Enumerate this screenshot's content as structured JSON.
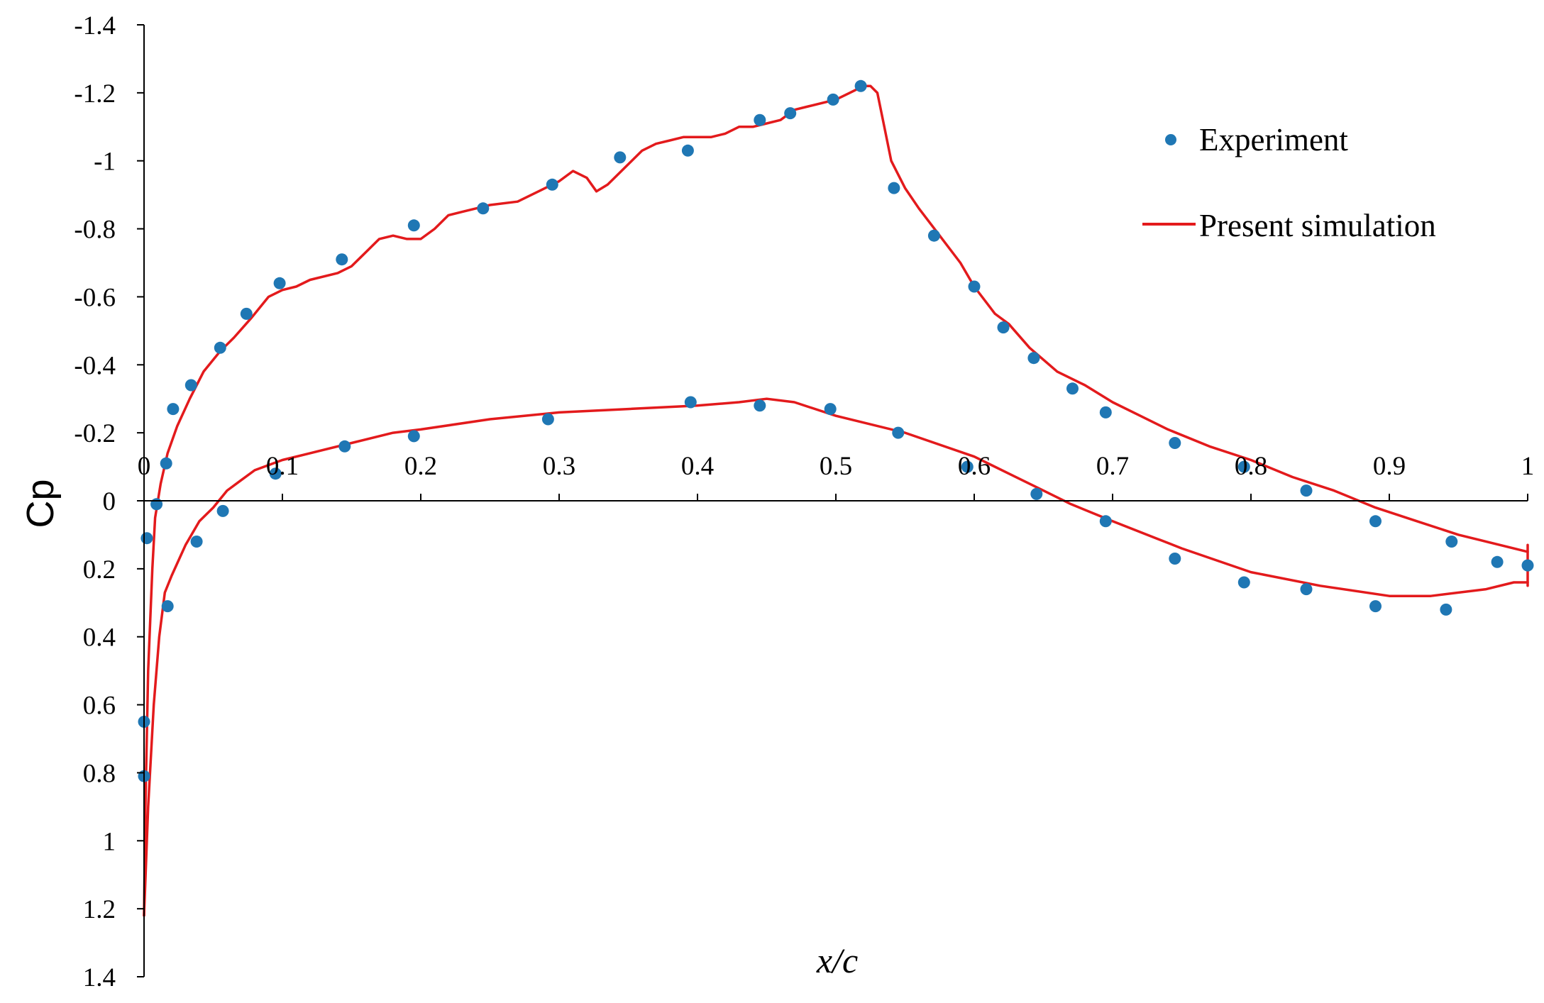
{
  "chart_data": {
    "type": "scatter",
    "title": "",
    "xlabel": "x/c",
    "ylabel": "Cp",
    "xlim": [
      0,
      1
    ],
    "ylim": [
      -1.4,
      1.4
    ],
    "y_inverted": true,
    "grid": false,
    "legend_position": "top-right",
    "x_ticks": [
      0,
      0.1,
      0.2,
      0.3,
      0.4,
      0.5,
      0.6,
      0.7,
      0.8,
      0.9,
      1
    ],
    "x_tick_labels": [
      "0",
      "0.1",
      "0.2",
      "0.3",
      "0.4",
      "0.5",
      "0.6",
      "0.7",
      "0.8",
      "0.9",
      "1"
    ],
    "y_ticks": [
      -1.4,
      -1.2,
      -1,
      -0.8,
      -0.6,
      -0.4,
      -0.2,
      0,
      0.2,
      0.4,
      0.6,
      0.8,
      1,
      1.2,
      1.4
    ],
    "y_tick_labels": [
      "-1.4",
      "-1.2",
      "-1",
      "-0.8",
      "-0.6",
      "-0.4",
      "-0.2",
      "0",
      "0.2",
      "0.4",
      "0.6",
      "0.8",
      "1",
      "1.2",
      "1.4"
    ],
    "series": [
      {
        "name": "Experiment",
        "kind": "scatter",
        "color": "#1f77b4",
        "points": [
          [
            0.0,
            0.81
          ],
          [
            0.0,
            0.65
          ],
          [
            0.002,
            0.11
          ],
          [
            0.009,
            0.01
          ],
          [
            0.016,
            -0.11
          ],
          [
            0.021,
            -0.27
          ],
          [
            0.034,
            -0.34
          ],
          [
            0.055,
            -0.45
          ],
          [
            0.074,
            -0.55
          ],
          [
            0.098,
            -0.64
          ],
          [
            0.143,
            -0.71
          ],
          [
            0.195,
            -0.81
          ],
          [
            0.245,
            -0.86
          ],
          [
            0.295,
            -0.93
          ],
          [
            0.344,
            -1.01
          ],
          [
            0.393,
            -1.03
          ],
          [
            0.445,
            -1.12
          ],
          [
            0.467,
            -1.14
          ],
          [
            0.498,
            -1.18
          ],
          [
            0.518,
            -1.22
          ],
          [
            0.542,
            -0.92
          ],
          [
            0.571,
            -0.78
          ],
          [
            0.6,
            -0.63
          ],
          [
            0.621,
            -0.51
          ],
          [
            0.643,
            -0.42
          ],
          [
            0.671,
            -0.33
          ],
          [
            0.695,
            -0.26
          ],
          [
            0.745,
            -0.17
          ],
          [
            0.795,
            -0.1
          ],
          [
            0.84,
            -0.03
          ],
          [
            0.89,
            0.06
          ],
          [
            0.945,
            0.12
          ],
          [
            0.978,
            0.18
          ],
          [
            1.0,
            0.19
          ],
          [
            0.017,
            0.31
          ],
          [
            0.038,
            0.12
          ],
          [
            0.057,
            0.03
          ],
          [
            0.095,
            -0.08
          ],
          [
            0.145,
            -0.16
          ],
          [
            0.195,
            -0.19
          ],
          [
            0.292,
            -0.24
          ],
          [
            0.395,
            -0.29
          ],
          [
            0.445,
            -0.28
          ],
          [
            0.496,
            -0.27
          ],
          [
            0.545,
            -0.2
          ],
          [
            0.595,
            -0.1
          ],
          [
            0.645,
            -0.02
          ],
          [
            0.695,
            0.06
          ],
          [
            0.745,
            0.17
          ],
          [
            0.795,
            0.24
          ],
          [
            0.84,
            0.26
          ],
          [
            0.89,
            0.31
          ],
          [
            0.941,
            0.32
          ]
        ]
      },
      {
        "name": "Present simulation",
        "kind": "line",
        "color": "#e31a1c",
        "curves": [
          [
            [
              0.0,
              1.22
            ],
            [
              0.001,
              0.9
            ],
            [
              0.003,
              0.5
            ],
            [
              0.006,
              0.2
            ],
            [
              0.008,
              0.05
            ],
            [
              0.012,
              -0.05
            ],
            [
              0.017,
              -0.14
            ],
            [
              0.024,
              -0.22
            ],
            [
              0.033,
              -0.3
            ],
            [
              0.043,
              -0.38
            ],
            [
              0.055,
              -0.44
            ],
            [
              0.065,
              -0.48
            ],
            [
              0.078,
              -0.54
            ],
            [
              0.09,
              -0.6
            ],
            [
              0.1,
              -0.62
            ],
            [
              0.11,
              -0.63
            ],
            [
              0.12,
              -0.65
            ],
            [
              0.14,
              -0.67
            ],
            [
              0.15,
              -0.69
            ],
            [
              0.16,
              -0.73
            ],
            [
              0.17,
              -0.77
            ],
            [
              0.18,
              -0.78
            ],
            [
              0.19,
              -0.77
            ],
            [
              0.2,
              -0.77
            ],
            [
              0.21,
              -0.8
            ],
            [
              0.22,
              -0.84
            ],
            [
              0.23,
              -0.85
            ],
            [
              0.24,
              -0.86
            ],
            [
              0.25,
              -0.87
            ],
            [
              0.27,
              -0.88
            ],
            [
              0.29,
              -0.92
            ],
            [
              0.3,
              -0.94
            ],
            [
              0.31,
              -0.97
            ],
            [
              0.32,
              -0.95
            ],
            [
              0.327,
              -0.91
            ],
            [
              0.335,
              -0.93
            ],
            [
              0.35,
              -0.99
            ],
            [
              0.36,
              -1.03
            ],
            [
              0.37,
              -1.05
            ],
            [
              0.38,
              -1.06
            ],
            [
              0.39,
              -1.07
            ],
            [
              0.41,
              -1.07
            ],
            [
              0.42,
              -1.08
            ],
            [
              0.43,
              -1.1
            ],
            [
              0.44,
              -1.1
            ],
            [
              0.45,
              -1.11
            ],
            [
              0.46,
              -1.12
            ],
            [
              0.47,
              -1.15
            ],
            [
              0.48,
              -1.16
            ],
            [
              0.5,
              -1.18
            ],
            [
              0.51,
              -1.2
            ],
            [
              0.52,
              -1.22
            ],
            [
              0.525,
              -1.22
            ],
            [
              0.53,
              -1.2
            ],
            [
              0.535,
              -1.1
            ],
            [
              0.54,
              -1.0
            ],
            [
              0.55,
              -0.92
            ],
            [
              0.56,
              -0.86
            ],
            [
              0.575,
              -0.78
            ],
            [
              0.59,
              -0.7
            ],
            [
              0.6,
              -0.63
            ],
            [
              0.615,
              -0.55
            ],
            [
              0.625,
              -0.52
            ],
            [
              0.64,
              -0.45
            ],
            [
              0.66,
              -0.38
            ],
            [
              0.68,
              -0.34
            ],
            [
              0.7,
              -0.29
            ],
            [
              0.72,
              -0.25
            ],
            [
              0.74,
              -0.21
            ],
            [
              0.77,
              -0.16
            ],
            [
              0.8,
              -0.12
            ],
            [
              0.83,
              -0.07
            ],
            [
              0.86,
              -0.03
            ],
            [
              0.89,
              0.02
            ],
            [
              0.92,
              0.06
            ],
            [
              0.95,
              0.1
            ],
            [
              0.98,
              0.13
            ],
            [
              1.0,
              0.15
            ]
          ],
          [
            [
              0.0,
              1.22
            ],
            [
              0.003,
              0.9
            ],
            [
              0.007,
              0.6
            ],
            [
              0.011,
              0.4
            ],
            [
              0.015,
              0.27
            ],
            [
              0.02,
              0.22
            ],
            [
              0.03,
              0.13
            ],
            [
              0.04,
              0.06
            ],
            [
              0.05,
              0.02
            ],
            [
              0.06,
              -0.03
            ],
            [
              0.07,
              -0.06
            ],
            [
              0.08,
              -0.09
            ],
            [
              0.1,
              -0.12
            ],
            [
              0.12,
              -0.14
            ],
            [
              0.15,
              -0.17
            ],
            [
              0.18,
              -0.2
            ],
            [
              0.2,
              -0.21
            ],
            [
              0.25,
              -0.24
            ],
            [
              0.3,
              -0.26
            ],
            [
              0.35,
              -0.27
            ],
            [
              0.4,
              -0.28
            ],
            [
              0.43,
              -0.29
            ],
            [
              0.45,
              -0.3
            ],
            [
              0.47,
              -0.29
            ],
            [
              0.5,
              -0.25
            ],
            [
              0.55,
              -0.2
            ],
            [
              0.6,
              -0.13
            ],
            [
              0.625,
              -0.08
            ],
            [
              0.65,
              -0.03
            ],
            [
              0.67,
              0.01
            ],
            [
              0.7,
              0.06
            ],
            [
              0.75,
              0.14
            ],
            [
              0.8,
              0.21
            ],
            [
              0.85,
              0.25
            ],
            [
              0.9,
              0.28
            ],
            [
              0.93,
              0.28
            ],
            [
              0.97,
              0.26
            ],
            [
              0.99,
              0.24
            ],
            [
              1.0,
              0.24
            ]
          ],
          [
            [
              1.0,
              0.13
            ],
            [
              1.0,
              0.25
            ]
          ]
        ]
      }
    ]
  }
}
